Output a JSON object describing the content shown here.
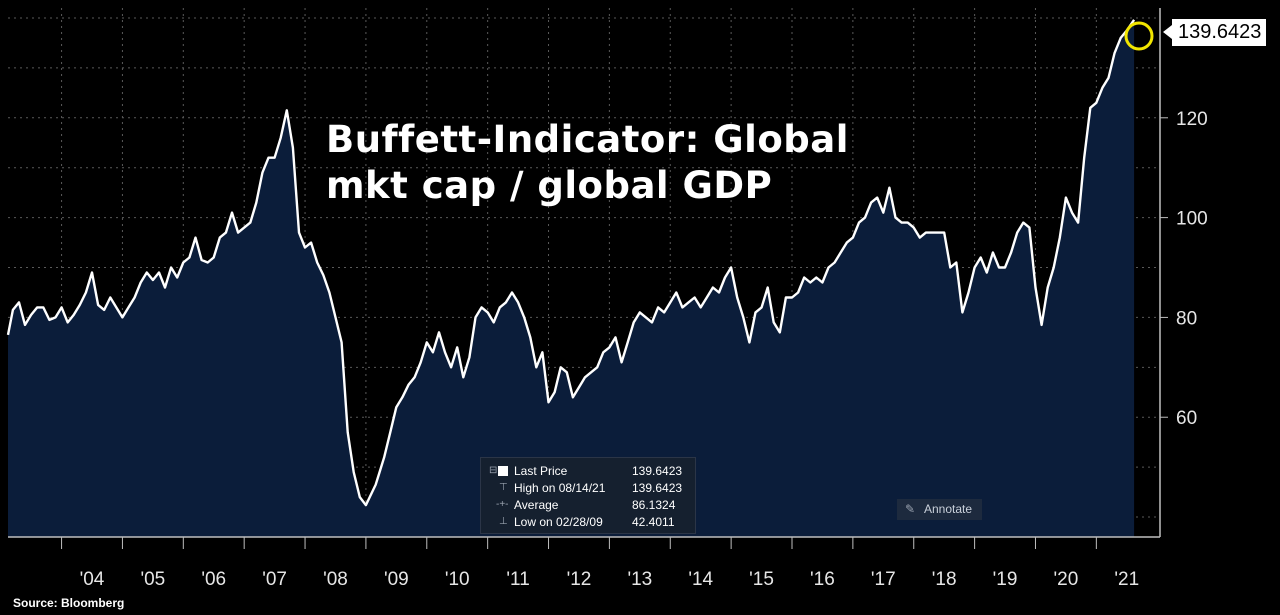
{
  "title_line1": "Buffett-Indicator: Global",
  "title_line2": "mkt cap / global GDP",
  "source": "Source: Bloomberg",
  "last_value_label": "139.6423",
  "legend": {
    "rows": [
      {
        "label": "Last Price",
        "value": "139.6423"
      },
      {
        "label": "High on 08/14/21",
        "value": "139.6423"
      },
      {
        "label": "Average",
        "value": "86.1324"
      },
      {
        "label": "Low on 02/28/09",
        "value": "42.4011"
      }
    ]
  },
  "annotate_label": "Annotate",
  "colors": {
    "background": "#000000",
    "line": "#ffffff",
    "fill": "#0b1d3a",
    "grid": "#5a5a5a",
    "highlight": "#f2e600"
  },
  "chart_data": {
    "type": "area",
    "title": "Buffett-Indicator: Global mkt cap / global GDP",
    "x_tick_labels": [
      "'04",
      "'05",
      "'06",
      "'07",
      "'08",
      "'09",
      "'10",
      "'11",
      "'12",
      "'13",
      "'14",
      "'15",
      "'16",
      "'17",
      "'18",
      "'19",
      "'20",
      "'21"
    ],
    "y_tick_labels": [
      "60",
      "80",
      "100",
      "120"
    ],
    "ylim": [
      36,
      142
    ],
    "xlim": [
      2003.12,
      2021.75
    ],
    "grid": true,
    "series": [
      {
        "x": [
          2003.12,
          2003.2,
          2003.3,
          2003.4,
          2003.5,
          2003.6,
          2003.7,
          2003.8,
          2003.9,
          2004.0,
          2004.1,
          2004.2,
          2004.3,
          2004.4,
          2004.5,
          2004.6,
          2004.7,
          2004.8,
          2004.9,
          2005.0,
          2005.1,
          2005.2,
          2005.3,
          2005.4,
          2005.5,
          2005.6,
          2005.7,
          2005.8,
          2005.9,
          2006.0,
          2006.1,
          2006.2,
          2006.3,
          2006.4,
          2006.5,
          2006.6,
          2006.7,
          2006.8,
          2006.9,
          2007.0,
          2007.1,
          2007.2,
          2007.3,
          2007.4,
          2007.5,
          2007.6,
          2007.7,
          2007.8,
          2007.9,
          2008.0,
          2008.1,
          2008.2,
          2008.3,
          2008.4,
          2008.5,
          2008.6,
          2008.7,
          2008.8,
          2008.9,
          2009.0,
          2009.16,
          2009.3,
          2009.4,
          2009.5,
          2009.6,
          2009.7,
          2009.8,
          2009.9,
          2010.0,
          2010.1,
          2010.2,
          2010.3,
          2010.4,
          2010.5,
          2010.6,
          2010.7,
          2010.8,
          2010.9,
          2011.0,
          2011.1,
          2011.2,
          2011.3,
          2011.4,
          2011.5,
          2011.6,
          2011.7,
          2011.8,
          2011.9,
          2012.0,
          2012.1,
          2012.2,
          2012.3,
          2012.4,
          2012.5,
          2012.6,
          2012.7,
          2012.8,
          2012.9,
          2013.0,
          2013.1,
          2013.2,
          2013.3,
          2013.4,
          2013.5,
          2013.6,
          2013.7,
          2013.8,
          2013.9,
          2014.0,
          2014.1,
          2014.2,
          2014.3,
          2014.4,
          2014.5,
          2014.6,
          2014.7,
          2014.8,
          2014.9,
          2015.0,
          2015.1,
          2015.2,
          2015.3,
          2015.4,
          2015.5,
          2015.6,
          2015.7,
          2015.8,
          2015.9,
          2016.0,
          2016.1,
          2016.2,
          2016.3,
          2016.4,
          2016.5,
          2016.6,
          2016.7,
          2016.8,
          2016.9,
          2017.0,
          2017.1,
          2017.2,
          2017.3,
          2017.4,
          2017.5,
          2017.6,
          2017.7,
          2017.8,
          2017.9,
          2018.0,
          2018.1,
          2018.2,
          2018.3,
          2018.4,
          2018.5,
          2018.6,
          2018.7,
          2018.8,
          2018.9,
          2019.0,
          2019.1,
          2019.2,
          2019.3,
          2019.4,
          2019.5,
          2019.6,
          2019.7,
          2019.8,
          2019.9,
          2020.0,
          2020.1,
          2020.2,
          2020.3,
          2020.4,
          2020.5,
          2020.6,
          2020.7,
          2020.8,
          2020.9,
          2021.0,
          2021.1,
          2021.2,
          2021.3,
          2021.4,
          2021.5,
          2021.62
        ],
        "values": [
          76.5,
          81.5,
          83,
          78.5,
          80.5,
          82,
          82,
          79.5,
          80,
          82,
          79,
          80.5,
          82.5,
          85,
          89,
          82.5,
          81.5,
          84,
          82,
          80,
          82,
          84,
          87,
          89,
          87.5,
          89,
          86,
          90,
          88,
          91,
          92,
          96,
          91.5,
          91,
          92,
          96,
          97,
          101,
          97,
          98,
          99,
          103,
          109,
          112,
          112,
          116,
          121.5,
          114,
          97,
          94,
          95,
          91,
          88.5,
          85,
          80,
          75,
          57,
          49,
          44,
          42.4,
          46.5,
          52,
          57,
          62,
          64,
          66.5,
          68,
          71,
          75,
          73,
          77,
          73,
          70,
          74,
          68,
          72,
          80,
          82,
          81,
          79,
          82,
          83,
          85,
          83,
          80,
          76,
          70,
          73,
          63,
          65,
          70,
          69,
          64,
          66,
          68,
          69,
          70,
          73,
          74,
          76,
          71,
          75,
          79,
          81,
          80,
          79,
          82,
          81,
          83,
          85,
          82,
          83,
          84,
          82,
          84,
          86,
          85,
          88,
          90,
          84,
          80,
          75,
          81,
          82,
          86,
          79,
          77,
          84,
          84,
          85,
          88,
          87,
          88,
          87,
          90,
          91,
          93,
          95,
          96,
          99,
          100,
          103,
          104,
          101,
          106,
          100,
          99,
          99,
          98,
          96,
          97,
          97,
          97,
          97,
          90,
          91,
          81,
          85,
          90,
          92,
          89,
          93,
          90,
          90,
          93,
          97,
          99,
          98,
          86,
          78.5,
          86,
          90,
          96,
          104,
          101,
          99,
          112,
          122,
          123,
          126,
          128,
          133,
          136,
          137.5,
          139.64
        ]
      }
    ]
  }
}
